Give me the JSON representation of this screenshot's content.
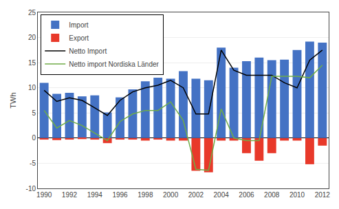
{
  "chart_data": {
    "type": "bar",
    "ylabel": "TWh",
    "x": [
      1990,
      1991,
      1992,
      1993,
      1994,
      1995,
      1996,
      1997,
      1998,
      1999,
      2000,
      2001,
      2002,
      2003,
      2004,
      2005,
      2006,
      2007,
      2008,
      2009,
      2010,
      2011,
      2012
    ],
    "series": [
      {
        "name": "Import",
        "type": "bar",
        "color": "#4472C4",
        "values": [
          11.0,
          8.8,
          9.0,
          8.3,
          8.5,
          5.1,
          8.1,
          9.7,
          11.3,
          12.0,
          11.8,
          13.3,
          11.8,
          11.5,
          18.0,
          14.0,
          15.3,
          16.0,
          15.5,
          15.6,
          17.5,
          19.2,
          19.0
        ]
      },
      {
        "name": "Export",
        "type": "bar",
        "color": "#E8392A",
        "values": [
          -0.3,
          -0.4,
          -0.3,
          -0.2,
          -0.3,
          -1.0,
          -0.3,
          -0.3,
          -0.5,
          -0.3,
          -0.5,
          -0.5,
          -6.5,
          -6.8,
          -0.5,
          -0.5,
          -3.0,
          -4.5,
          -3.0,
          -0.5,
          -0.5,
          -5.2,
          -1.5
        ]
      },
      {
        "name": "Netto Import",
        "type": "line",
        "color": "#000000",
        "values": [
          9.5,
          7.3,
          8.0,
          7.5,
          6.0,
          4.5,
          7.5,
          9.2,
          10.0,
          10.5,
          11.5,
          10.0,
          4.8,
          4.8,
          17.5,
          13.5,
          12.5,
          12.5,
          12.5,
          11.0,
          10.0,
          15.5,
          17.5
        ]
      },
      {
        "name": "Netto import Nordiska Länder",
        "type": "line",
        "color": "#70AD47",
        "values": [
          5.5,
          2.0,
          3.5,
          2.5,
          1.0,
          -0.5,
          3.3,
          4.8,
          5.5,
          5.5,
          7.2,
          3.5,
          -6.2,
          -6.4,
          5.8,
          0.0,
          -0.5,
          -0.5,
          12.3,
          12.3,
          12.3,
          12.0,
          14.5
        ]
      }
    ],
    "xlim": [
      1989.5,
      2012.5
    ],
    "xticks": [
      1990,
      1992,
      1994,
      1996,
      1998,
      2000,
      2002,
      2004,
      2006,
      2008,
      2010,
      2012
    ],
    "ylim": [
      -10,
      25
    ],
    "yticks": [
      -10,
      -5,
      0,
      5,
      10,
      15,
      20,
      25
    ],
    "grid": true,
    "legend": "upper left"
  }
}
